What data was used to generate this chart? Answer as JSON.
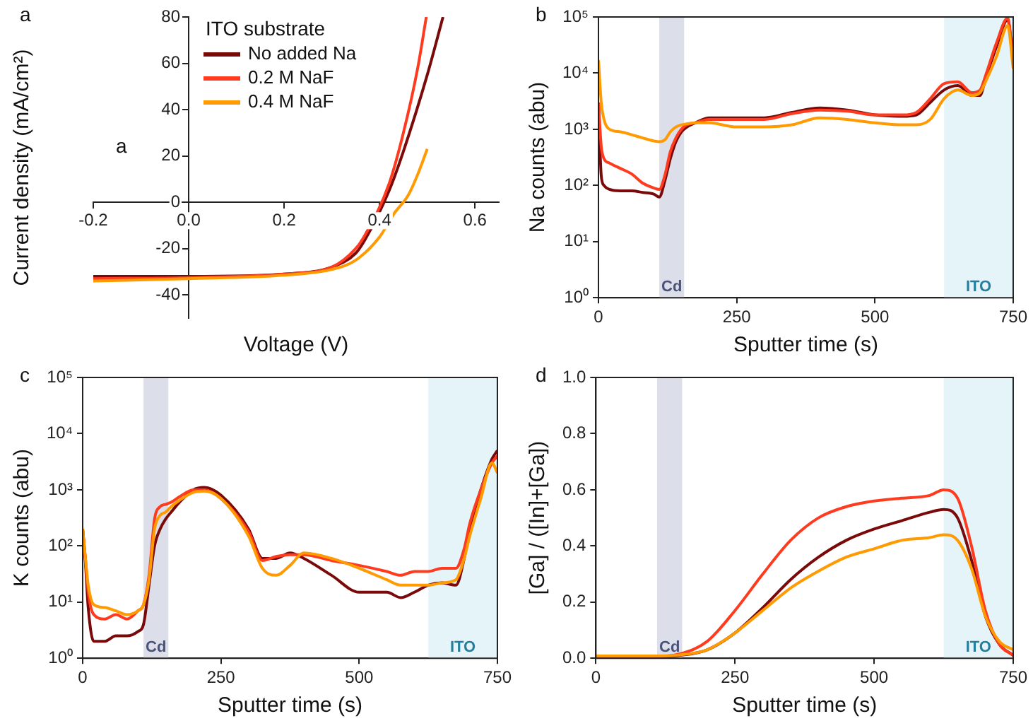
{
  "chart_data": [
    {
      "type": "line",
      "xlabel": "Voltage (V)",
      "ylabel": "Current density (mA/cm²)",
      "legend_title": "ITO substrate",
      "legend": "top left",
      "marker": "none",
      "grid": false,
      "xlim": [
        -0.2,
        0.65
      ],
      "xticks": [
        -0.2,
        {
          "value": 0,
          "label": "0.0"
        },
        0.2,
        0.4,
        0.6
      ],
      "ylim": [
        -50,
        80
      ],
      "yticks": [
        -40,
        -20,
        0,
        20,
        40,
        60,
        80
      ],
      "annotations": [
        "a",
        "a"
      ],
      "series": [
        {
          "name": "No added Na",
          "color": "#7a0a0a",
          "x": [
            -0.2,
            0,
            0.2,
            0.3,
            0.35,
            0.37,
            0.42,
            0.45,
            0.5,
            0.533
          ],
          "values": [
            -32,
            -32,
            -31,
            -28,
            -22,
            -16,
            5,
            22,
            55,
            80
          ]
        },
        {
          "name": "0.2 M NaF",
          "color": "#ff3b1f",
          "x": [
            -0.2,
            0,
            0.2,
            0.3,
            0.35,
            0.37,
            0.42,
            0.45,
            0.48,
            0.498
          ],
          "values": [
            -33,
            -32.5,
            -31,
            -28,
            -20,
            -14,
            8,
            30,
            58,
            80
          ]
        },
        {
          "name": "0.4 M NaF",
          "color": "#ff9a00",
          "x": [
            -0.2,
            0,
            0.2,
            0.3,
            0.35,
            0.4,
            0.43,
            0.46,
            0.48,
            0.5
          ],
          "values": [
            -34,
            -33,
            -31.5,
            -29,
            -25,
            -15,
            -5,
            3,
            12,
            23
          ]
        }
      ]
    },
    {
      "type": "line",
      "xlabel": "Sputter time (s)",
      "ylabel": "Na counts (abu)",
      "marker": "none",
      "grid": false,
      "log": "y",
      "xlim": [
        0,
        750
      ],
      "xticks": [
        0,
        250,
        500,
        750
      ],
      "ylim": [
        1,
        100000
      ],
      "yticks": [
        {
          "value": 1,
          "label": "10⁰"
        },
        {
          "value": 10,
          "label": "10¹"
        },
        {
          "value": 100,
          "label": "10²"
        },
        {
          "value": 1000,
          "label": "10³"
        },
        {
          "value": 10000,
          "label": "10⁴"
        },
        {
          "value": 100000,
          "label": "10⁵"
        }
      ],
      "annotations": [
        "b"
      ],
      "bands": [
        {
          "axis": "x",
          "from": 110,
          "to": 155,
          "label": "Cd",
          "color": "#dcdfea"
        },
        {
          "axis": "x",
          "from": 625,
          "to": 750,
          "label": "ITO",
          "color": "#e5f4f9"
        }
      ],
      "x": [
        0,
        5,
        10,
        20,
        40,
        60,
        80,
        100,
        110,
        120,
        130,
        140,
        150,
        160,
        175,
        200,
        250,
        300,
        350,
        400,
        450,
        500,
        550,
        575,
        600,
        625,
        650,
        675,
        690,
        700,
        720,
        740,
        750
      ],
      "series": [
        {
          "color": "#7a0a0a",
          "values": [
            3000,
            150,
            100,
            85,
            80,
            80,
            75,
            70,
            62,
            120,
            300,
            600,
            900,
            1100,
            1300,
            1600,
            1600,
            1600,
            2000,
            2400,
            2200,
            1800,
            1700,
            1800,
            3000,
            5000,
            6000,
            4000,
            4000,
            8000,
            30000,
            90000,
            15000
          ]
        },
        {
          "color": "#ff3b1f",
          "values": [
            3000,
            500,
            300,
            250,
            200,
            160,
            110,
            90,
            85,
            150,
            400,
            700,
            1000,
            1200,
            1300,
            1500,
            1500,
            1500,
            1900,
            2200,
            2100,
            1800,
            1800,
            2000,
            3500,
            6500,
            7000,
            4500,
            5000,
            9000,
            35000,
            95000,
            15000
          ]
        },
        {
          "color": "#ff9a00",
          "values": [
            17000,
            3000,
            1500,
            1000,
            900,
            800,
            700,
            620,
            600,
            650,
            900,
            1100,
            1200,
            1250,
            1300,
            1300,
            1100,
            1100,
            1200,
            1600,
            1500,
            1300,
            1200,
            1200,
            1500,
            3500,
            5000,
            4000,
            4500,
            7000,
            20000,
            70000,
            12000
          ]
        }
      ]
    },
    {
      "type": "line",
      "xlabel": "Sputter time (s)",
      "ylabel": "K counts (abu)",
      "marker": "none",
      "grid": false,
      "log": "y",
      "xlim": [
        0,
        750
      ],
      "xticks": [
        0,
        250,
        500,
        750
      ],
      "ylim": [
        1,
        100000
      ],
      "yticks": [
        {
          "value": 1,
          "label": "10⁰"
        },
        {
          "value": 10,
          "label": "10¹"
        },
        {
          "value": 100,
          "label": "10²"
        },
        {
          "value": 1000,
          "label": "10³"
        },
        {
          "value": 10000,
          "label": "10⁴"
        },
        {
          "value": 100000,
          "label": "10⁵"
        }
      ],
      "annotations": [
        "c"
      ],
      "bands": [
        {
          "axis": "x",
          "from": 110,
          "to": 155,
          "label": "Cd",
          "color": "#dcdfea"
        },
        {
          "axis": "x",
          "from": 625,
          "to": 750,
          "label": "ITO",
          "color": "#e5f4f9"
        }
      ],
      "x": [
        0,
        5,
        10,
        20,
        40,
        60,
        80,
        100,
        110,
        120,
        130,
        140,
        150,
        160,
        175,
        200,
        220,
        250,
        300,
        325,
        350,
        375,
        400,
        450,
        500,
        550,
        575,
        600,
        625,
        650,
        675,
        690,
        700,
        720,
        740,
        750
      ],
      "series": [
        {
          "color": "#7a0a0a",
          "values": [
            200,
            50,
            8,
            2,
            2,
            2.5,
            2.5,
            3,
            4,
            20,
            100,
            200,
            300,
            400,
            600,
            1000,
            1100,
            800,
            200,
            60,
            60,
            75,
            60,
            30,
            15,
            15,
            12,
            15,
            20,
            22,
            20,
            60,
            200,
            1000,
            3500,
            5000
          ]
        },
        {
          "color": "#ff3b1f",
          "values": [
            200,
            60,
            15,
            6,
            5,
            6,
            5,
            7,
            9,
            30,
            300,
            500,
            550,
            600,
            750,
            1000,
            1000,
            700,
            180,
            55,
            65,
            70,
            70,
            55,
            45,
            35,
            30,
            35,
            35,
            40,
            40,
            90,
            250,
            1000,
            3000,
            4000
          ]
        },
        {
          "color": "#ff9a00",
          "values": [
            200,
            60,
            20,
            9,
            8,
            7,
            6,
            7,
            9,
            25,
            200,
            350,
            400,
            500,
            650,
            900,
            950,
            700,
            150,
            40,
            30,
            45,
            75,
            60,
            40,
            25,
            20,
            20,
            20,
            22,
            25,
            60,
            150,
            700,
            3000,
            2000
          ]
        }
      ]
    },
    {
      "type": "line",
      "xlabel": "Sputter time (s)",
      "ylabel": "[Ga] / ([In]+[Ga])",
      "marker": "none",
      "grid": false,
      "xlim": [
        0,
        750
      ],
      "xticks": [
        0,
        250,
        500,
        750
      ],
      "ylim": [
        0,
        1
      ],
      "yticks": [
        {
          "value": 0,
          "label": "0.0"
        },
        0.2,
        0.4,
        0.6,
        0.8,
        {
          "value": 1,
          "label": "1.0"
        }
      ],
      "annotations": [
        "d"
      ],
      "bands": [
        {
          "axis": "x",
          "from": 110,
          "to": 155,
          "label": "Cd",
          "color": "#dcdfea"
        },
        {
          "axis": "x",
          "from": 625,
          "to": 750,
          "label": "ITO",
          "color": "#e5f4f9"
        }
      ],
      "x": [
        0,
        100,
        150,
        200,
        250,
        300,
        350,
        400,
        450,
        500,
        550,
        600,
        625,
        650,
        675,
        700,
        725,
        750
      ],
      "series": [
        {
          "color": "#7a0a0a",
          "values": [
            0,
            0.002,
            0.01,
            0.03,
            0.09,
            0.18,
            0.28,
            0.36,
            0.42,
            0.46,
            0.49,
            0.52,
            0.53,
            0.5,
            0.35,
            0.15,
            0.05,
            0.01
          ]
        },
        {
          "color": "#ff3b1f",
          "values": [
            0.003,
            0.005,
            0.015,
            0.06,
            0.17,
            0.3,
            0.42,
            0.5,
            0.54,
            0.56,
            0.57,
            0.58,
            0.6,
            0.57,
            0.4,
            0.17,
            0.05,
            0.01
          ]
        },
        {
          "color": "#ff9a00",
          "values": [
            0.008,
            0.008,
            0.012,
            0.03,
            0.09,
            0.17,
            0.25,
            0.31,
            0.36,
            0.39,
            0.42,
            0.43,
            0.44,
            0.42,
            0.32,
            0.15,
            0.06,
            0.03
          ]
        }
      ]
    }
  ]
}
